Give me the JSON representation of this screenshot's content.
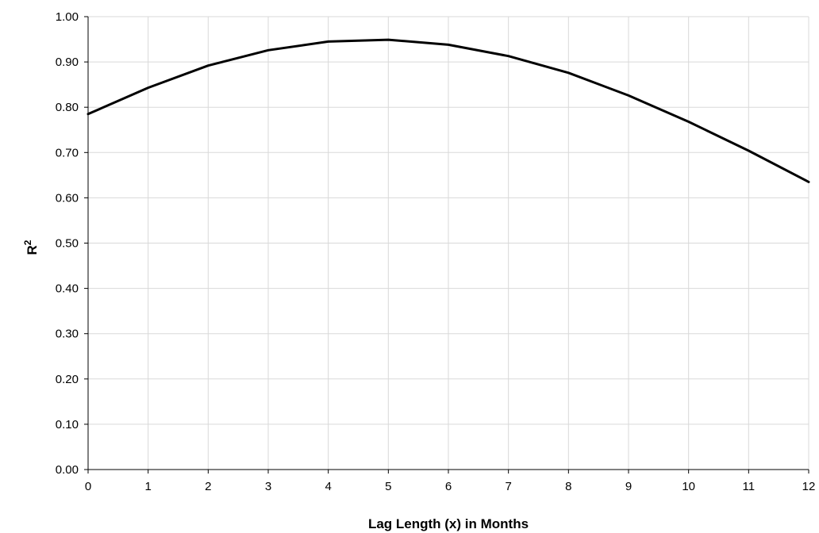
{
  "chart_data": {
    "type": "line",
    "xlabel": "Lag Length (x) in Months",
    "ylabel": "R",
    "ylabel_sup": "2",
    "xlim": [
      0,
      12
    ],
    "ylim": [
      0,
      1
    ],
    "x_ticks": [
      0,
      1,
      2,
      3,
      4,
      5,
      6,
      7,
      8,
      9,
      10,
      11,
      12
    ],
    "y_ticks": [
      0,
      0.1,
      0.2,
      0.3,
      0.4,
      0.5,
      0.6,
      0.7,
      0.8,
      0.9,
      1.0
    ],
    "y_tick_labels": [
      "0.00",
      "0.10",
      "0.20",
      "0.30",
      "0.40",
      "0.50",
      "0.60",
      "0.70",
      "0.80",
      "0.90",
      "1.00"
    ],
    "grid": true,
    "series": [
      {
        "color": "#000000",
        "x": [
          0,
          1,
          2,
          3,
          4,
          5,
          6,
          7,
          8,
          9,
          10,
          11,
          12
        ],
        "values": [
          0.785,
          0.843,
          0.892,
          0.926,
          0.945,
          0.949,
          0.938,
          0.913,
          0.876,
          0.826,
          0.768,
          0.704,
          0.635
        ]
      }
    ]
  }
}
